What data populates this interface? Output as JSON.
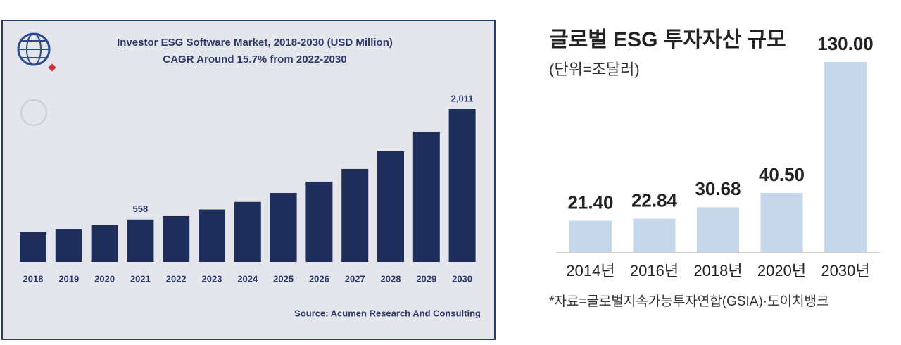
{
  "chart_data": [
    {
      "type": "bar",
      "title": "Investor ESG Software Market, 2018-2030 (USD Million)",
      "subtitle": "CAGR Around 15.7% from 2022-2030",
      "categories": [
        "2018",
        "2019",
        "2020",
        "2021",
        "2022",
        "2023",
        "2024",
        "2025",
        "2026",
        "2027",
        "2028",
        "2029",
        "2030"
      ],
      "values": [
        390,
        435,
        482,
        558,
        603,
        690,
        790,
        908,
        1057,
        1224,
        1455,
        1715,
        2011
      ],
      "value_labels": [
        null,
        null,
        null,
        "558",
        null,
        null,
        null,
        null,
        null,
        null,
        null,
        null,
        "2,011"
      ],
      "color": "#1f2d5a",
      "source": "Source: Acumen Research And Consulting"
    },
    {
      "type": "bar",
      "title": "글로벌 ESG 투자자산 규모",
      "subtitle": "(단위=조달러)",
      "categories": [
        "2014년",
        "2016년",
        "2018년",
        "2020년",
        "2030년"
      ],
      "values": [
        21.4,
        22.84,
        30.68,
        40.5,
        130.0
      ],
      "value_labels": [
        "21.40",
        "22.84",
        "30.68",
        "40.50",
        "130.00"
      ],
      "color": "#c5d7e8",
      "source": "*자료=글로벌지속가능투자연합(GSIA)·도이치뱅크"
    }
  ]
}
